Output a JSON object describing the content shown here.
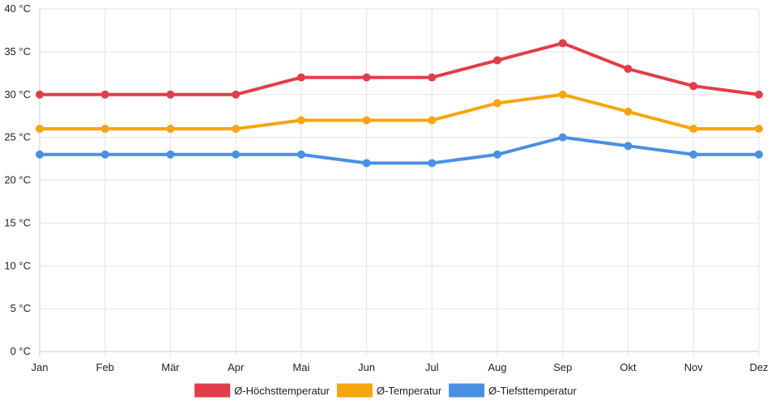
{
  "chart_data": {
    "type": "line",
    "title": "",
    "xlabel": "",
    "ylabel": "",
    "unit": "°C",
    "ylim": [
      0,
      40
    ],
    "ytick_step": 5,
    "grid": true,
    "legend_position": "bottom-center",
    "categories": [
      "Jan",
      "Feb",
      "Mär",
      "Apr",
      "Mai",
      "Jun",
      "Jul",
      "Aug",
      "Sep",
      "Okt",
      "Nov",
      "Dez"
    ],
    "yticks": [
      "0 °C",
      "5 °C",
      "10 °C",
      "15 °C",
      "20 °C",
      "25 °C",
      "30 °C",
      "35 °C",
      "40 °C"
    ],
    "series": [
      {
        "name": "Ø-Höchsttemperatur",
        "color": "#e23d4a",
        "values": [
          30,
          30,
          30,
          30,
          32,
          32,
          32,
          34,
          36,
          33,
          31,
          30
        ]
      },
      {
        "name": "Ø-Temperatur",
        "color": "#f5a60e",
        "values": [
          26,
          26,
          26,
          26,
          27,
          27,
          27,
          29,
          30,
          28,
          26,
          26
        ]
      },
      {
        "name": "Ø-Tiefsttemperatur",
        "color": "#4a90e2",
        "values": [
          23,
          23,
          23,
          23,
          23,
          22,
          22,
          23,
          25,
          24,
          23,
          23
        ]
      }
    ]
  }
}
